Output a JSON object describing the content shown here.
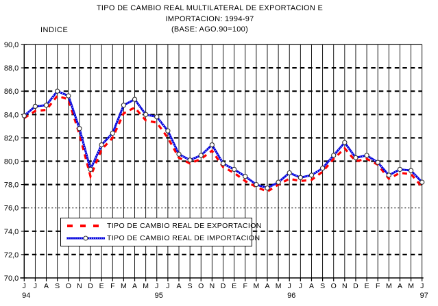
{
  "title": {
    "line1": "TIPO DE CAMBIO REAL MULTILATERAL DE EXPORTACION E",
    "line2": "IMPORTACION: 1994-97",
    "line3": "(BASE: AGO.90=100)"
  },
  "y_axis": {
    "unit_label": "INDICE",
    "ticks": [
      {
        "label": "90,0",
        "value": 90
      },
      {
        "label": "88,0",
        "value": 88
      },
      {
        "label": "86,0",
        "value": 86
      },
      {
        "label": "84,0",
        "value": 84
      },
      {
        "label": "82,0",
        "value": 82
      },
      {
        "label": "80,0",
        "value": 80
      },
      {
        "label": "78,0",
        "value": 78
      },
      {
        "label": "76,0",
        "value": 76
      },
      {
        "label": "74,0",
        "value": 74
      },
      {
        "label": "72,0",
        "value": 72
      },
      {
        "label": "70,0",
        "value": 70
      }
    ]
  },
  "x_axis": {
    "month_labels": [
      "J",
      "J",
      "A",
      "S",
      "O",
      "N",
      "D",
      "E",
      "F",
      "M",
      "A",
      "M",
      "J",
      "J",
      "A",
      "S",
      "O",
      "N",
      "D",
      "E",
      "F",
      "M",
      "A",
      "M",
      "J",
      "J",
      "A",
      "S",
      "O",
      "N",
      "D",
      "E",
      "F",
      "M",
      "A",
      "M",
      "J"
    ],
    "year_labels": [
      {
        "label": "94",
        "month_index": 0
      },
      {
        "label": "95",
        "month_index": 12
      },
      {
        "label": "96",
        "month_index": 24
      },
      {
        "label": "97",
        "month_index": 36
      }
    ]
  },
  "legend": {
    "exportacion": "TIPO DE CAMBIO REAL DE EXPORTACION",
    "importacion": "TIPO DE CAMBIO REAL DE IMPORTACION"
  },
  "colors": {
    "exportacion": "#FF0000",
    "importacion": "#0000DD",
    "grid": "#000000",
    "marker_fill": "#FFFFFF",
    "marker_stroke": "#303030",
    "background": "#FFFFFF"
  },
  "chart_data": {
    "type": "line",
    "title": "TIPO DE CAMBIO REAL MULTILATERAL DE EXPORTACION E IMPORTACION: 1994-97 (BASE: AGO.90=100)",
    "ylabel": "INDICE",
    "ylim": [
      70,
      90
    ],
    "y_step": 2,
    "grid": "horizontal-dashed and vertical-solid per month",
    "legend_position": "inside lower-left, boxed",
    "categories": [
      "Jun-94",
      "Jul-94",
      "Ago-94",
      "Sep-94",
      "Oct-94",
      "Nov-94",
      "Dic-94",
      "Ene-95",
      "Feb-95",
      "Mar-95",
      "Abr-95",
      "May-95",
      "Jun-95",
      "Jul-95",
      "Ago-95",
      "Sep-95",
      "Oct-95",
      "Nov-95",
      "Dic-95",
      "Ene-96",
      "Feb-96",
      "Mar-96",
      "Abr-96",
      "May-96",
      "Jun-96",
      "Jul-96",
      "Ago-96",
      "Sep-96",
      "Oct-96",
      "Nov-96",
      "Dic-96",
      "Ene-97",
      "Feb-97",
      "Mar-97",
      "Abr-97",
      "May-97",
      "Jun-97"
    ],
    "series": [
      {
        "name": "TIPO DE CAMBIO REAL DE EXPORTACION",
        "style": "dashed-thick",
        "color": "#FF0000",
        "values": [
          83.7,
          84.3,
          84.4,
          85.6,
          85.3,
          82.3,
          78.7,
          81.0,
          82.0,
          84.1,
          84.6,
          83.5,
          83.3,
          82.0,
          80.3,
          79.8,
          80.2,
          80.9,
          79.5,
          79.0,
          78.3,
          77.8,
          77.4,
          78.0,
          78.5,
          78.3,
          78.4,
          79.1,
          80.2,
          81.1,
          80.0,
          80.2,
          79.7,
          78.5,
          79.0,
          78.9,
          77.8
        ]
      },
      {
        "name": "TIPO DE CAMBIO REAL DE IMPORTACION",
        "style": "beaded-line-open-circle-markers",
        "color": "#0000DD",
        "values": [
          83.9,
          84.7,
          84.8,
          86.0,
          85.6,
          82.8,
          79.3,
          81.4,
          82.4,
          84.8,
          85.3,
          84.0,
          83.8,
          82.6,
          80.6,
          80.1,
          80.5,
          81.4,
          79.8,
          79.3,
          78.7,
          78.0,
          77.7,
          78.2,
          79.0,
          78.6,
          78.8,
          79.4,
          80.5,
          81.6,
          80.3,
          80.5,
          79.9,
          78.8,
          79.3,
          79.2,
          78.2
        ]
      }
    ]
  }
}
